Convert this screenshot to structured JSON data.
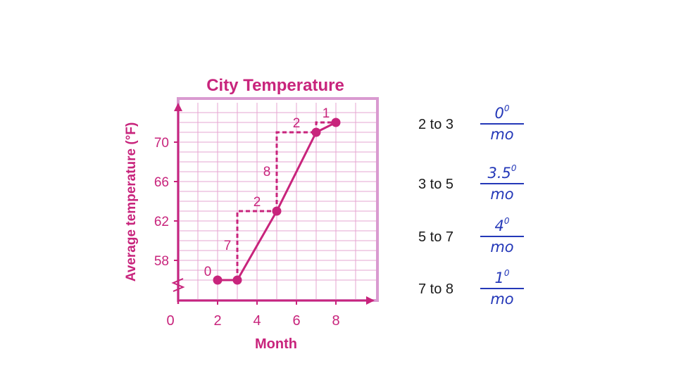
{
  "chart_data": {
    "type": "line",
    "title": "City Temperature",
    "xlabel": "Month",
    "ylabel": "Average temperature (°F)",
    "x_ticks": [
      "0",
      "2",
      "4",
      "6",
      "8"
    ],
    "y_ticks": [
      "58",
      "62",
      "66",
      "70"
    ],
    "xlim": [
      0,
      10
    ],
    "ylim": [
      56,
      72
    ],
    "grid": true,
    "series": [
      {
        "x": [
          2,
          3,
          5,
          7,
          8
        ],
        "y": [
          56,
          56,
          63,
          71,
          72
        ]
      }
    ],
    "step_annotations": [
      {
        "from_x": 2,
        "to_x": 3,
        "run_label": "",
        "rise_label": "0"
      },
      {
        "from_x": 3,
        "to_x": 5,
        "run_label": "2",
        "rise_label": "7"
      },
      {
        "from_x": 5,
        "to_x": 7,
        "run_label": "2",
        "rise_label": "8"
      },
      {
        "from_x": 7,
        "to_x": 8,
        "run_label": "1",
        "rise_label": ""
      }
    ],
    "colors": {
      "line": "#c8247c",
      "grid": "#e5a6d0",
      "frame": "#d99ad0",
      "axis": "#c8247c"
    }
  },
  "rates": [
    {
      "label": "2 to 3",
      "num": "0",
      "unit": "0",
      "den": "mo"
    },
    {
      "label": "3 to 5",
      "num": "3.5",
      "unit": "0",
      "den": "mo"
    },
    {
      "label": "5 to 7",
      "num": "4",
      "unit": "0",
      "den": "mo"
    },
    {
      "label": "7 to 8",
      "num": "1",
      "unit": "0",
      "den": "mo"
    }
  ]
}
